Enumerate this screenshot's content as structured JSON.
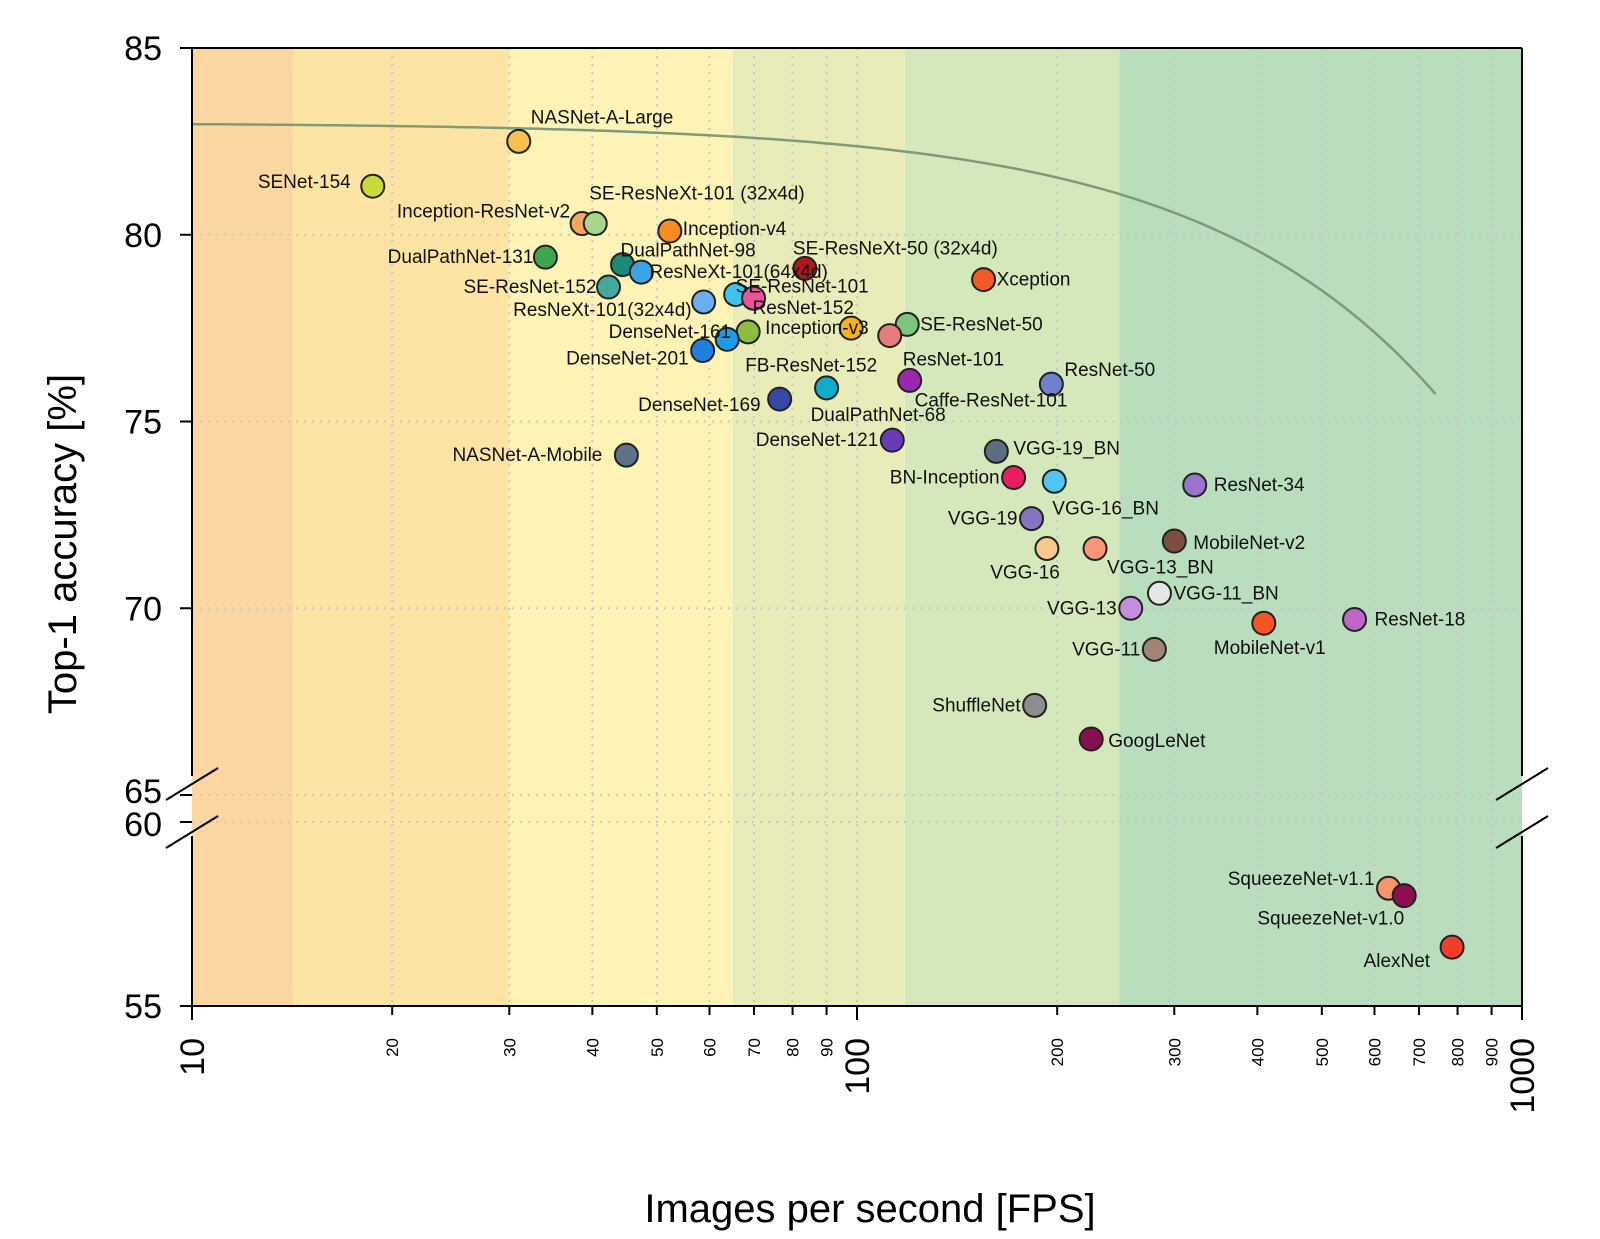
{
  "chart_data": {
    "type": "scatter",
    "xlabel": "Images per second [FPS]",
    "ylabel": "Top-1 accuracy [%]",
    "xscale": "log",
    "xlim": [
      10,
      1000
    ],
    "ylim_upper": [
      65,
      85
    ],
    "ylim_lower": [
      55,
      60
    ],
    "broken_y_axis": true,
    "grid": true,
    "y_ticks": [
      "55",
      "60",
      "65",
      "70",
      "75",
      "80",
      "85"
    ],
    "x_major_ticks": [
      "10",
      "100",
      "1000"
    ],
    "x_minor_ticks": [
      "20",
      "30",
      "40",
      "50",
      "60",
      "70",
      "80",
      "90",
      "200",
      "300",
      "400",
      "500",
      "600",
      "700",
      "800",
      "900"
    ],
    "background_bands": [
      {
        "from": 10,
        "to": 14.2,
        "color": "#fbd6a3"
      },
      {
        "from": 14.2,
        "to": 30,
        "color": "#fde4a4"
      },
      {
        "from": 30,
        "to": 65,
        "color": "#fdf3b7"
      },
      {
        "from": 65,
        "to": 118,
        "color": "#e9ecb8"
      },
      {
        "from": 118,
        "to": 248,
        "color": "#d5e8bb"
      },
      {
        "from": 248,
        "to": 1000,
        "color": "#b9ddbd"
      }
    ],
    "frontier_color": "#7f9a7a",
    "points": [
      {
        "name": "NASNet-A-Large",
        "fps": 31,
        "acc": 82.5,
        "color": "#f8c14f"
      },
      {
        "name": "SENet-154",
        "fps": 18.7,
        "acc": 81.3,
        "color": "#c8d93a"
      },
      {
        "name": "Inception-ResNet-v2",
        "fps": 38.6,
        "acc": 80.3,
        "color": "#f5a55f"
      },
      {
        "name": "SE-ResNeXt-101 (32x4d)",
        "fps": 40.4,
        "acc": 80.3,
        "color": "#a8d58a"
      },
      {
        "name": "Inception-v4",
        "fps": 52.3,
        "acc": 80.1,
        "color": "#f68b1f"
      },
      {
        "name": "DualPathNet-131",
        "fps": 34,
        "acc": 79.4,
        "color": "#3ea74b"
      },
      {
        "name": "DualPathNet-98",
        "fps": 44.4,
        "acc": 79.2,
        "color": "#1b8a78"
      },
      {
        "name": "ResNeXt-101(64x4d)",
        "fps": 47.4,
        "acc": 79.0,
        "color": "#3aa3e3"
      },
      {
        "name": "SE-ResNeXt-50 (32x4d)",
        "fps": 83.5,
        "acc": 79.1,
        "color": "#b0181c"
      },
      {
        "name": "Xception",
        "fps": 155,
        "acc": 78.8,
        "color": "#f45a23"
      },
      {
        "name": "SE-ResNet-152",
        "fps": 42.3,
        "acc": 78.6,
        "color": "#44a89d"
      },
      {
        "name": "SE-ResNet-101",
        "fps": 65.7,
        "acc": 78.4,
        "color": "#3dc4e8"
      },
      {
        "name": "ResNeXt-101(32x4d)",
        "fps": 58.8,
        "acc": 78.2,
        "color": "#6aaef0"
      },
      {
        "name": "ResNet-152",
        "fps": 69.9,
        "acc": 78.3,
        "color": "#e8559a"
      },
      {
        "name": "SE-ResNet-50",
        "fps": 119,
        "acc": 77.6,
        "color": "#7cc67c"
      },
      {
        "name": "Inception-v3",
        "fps": 98,
        "acc": 77.5,
        "color": "#f5b316"
      },
      {
        "name": "DenseNet-161",
        "fps": 68.6,
        "acc": 77.4,
        "color": "#8cbd43"
      },
      {
        "name": "FB-ResNet-152",
        "fps": 63.8,
        "acc": 77.2,
        "color": "#1a9ce8"
      },
      {
        "name": "ResNet-101",
        "fps": 112,
        "acc": 77.3,
        "color": "#e77b7e"
      },
      {
        "name": "DenseNet-201",
        "fps": 58.6,
        "acc": 76.9,
        "color": "#1f7ede"
      },
      {
        "name": "ResNet-50",
        "fps": 196,
        "acc": 76.0,
        "color": "#7080cc"
      },
      {
        "name": "Caffe-ResNet-101",
        "fps": 120,
        "acc": 76.1,
        "color": "#9a27b0"
      },
      {
        "name": "DualPathNet-68",
        "fps": 90,
        "acc": 75.9,
        "color": "#11acc9"
      },
      {
        "name": "DenseNet-169",
        "fps": 76.5,
        "acc": 75.6,
        "color": "#3848a8"
      },
      {
        "name": "DenseNet-121",
        "fps": 113,
        "acc": 74.5,
        "color": "#6a3ab8"
      },
      {
        "name": "NASNet-A-Mobile",
        "fps": 45,
        "acc": 74.1,
        "color": "#5c7485"
      },
      {
        "name": "VGG-19_BN",
        "fps": 162,
        "acc": 74.2,
        "color": "#5e6e7e"
      },
      {
        "name": "BN-Inception",
        "fps": 172,
        "acc": 73.5,
        "color": "#e91e62"
      },
      {
        "name": "VGG-16_BN",
        "fps": 198,
        "acc": 73.4,
        "color": "#4fc5ef"
      },
      {
        "name": "ResNet-34",
        "fps": 322,
        "acc": 73.3,
        "color": "#9a72d0"
      },
      {
        "name": "VGG-19",
        "fps": 183,
        "acc": 72.4,
        "color": "#8474c0"
      },
      {
        "name": "MobileNet-v2",
        "fps": 300,
        "acc": 71.8,
        "color": "#7a4f40"
      },
      {
        "name": "VGG-16",
        "fps": 193,
        "acc": 71.6,
        "color": "#f6c98f"
      },
      {
        "name": "VGG-13_BN",
        "fps": 228,
        "acc": 71.6,
        "color": "#f7977a"
      },
      {
        "name": "VGG-11_BN",
        "fps": 285,
        "acc": 70.4,
        "color": "#e6e6e6"
      },
      {
        "name": "VGG-13",
        "fps": 258,
        "acc": 70.0,
        "color": "#c58ddd"
      },
      {
        "name": "ResNet-18",
        "fps": 560,
        "acc": 69.7,
        "color": "#c065c9"
      },
      {
        "name": "MobileNet-v1",
        "fps": 409,
        "acc": 69.6,
        "color": "#f65327"
      },
      {
        "name": "VGG-11",
        "fps": 280,
        "acc": 68.9,
        "color": "#a08476"
      },
      {
        "name": "ShuffleNet",
        "fps": 185,
        "acc": 67.4,
        "color": "#8d8d8d"
      },
      {
        "name": "GoogLeNet",
        "fps": 225,
        "acc": 66.5,
        "color": "#86104e"
      },
      {
        "name": "SqueezeNet-v1.1",
        "fps": 630,
        "acc": 58.2,
        "color": "#f7946c"
      },
      {
        "name": "SqueezeNet-v1.0",
        "fps": 665,
        "acc": 58.0,
        "color": "#8d0f50"
      },
      {
        "name": "AlexNet",
        "fps": 785,
        "acc": 56.6,
        "color": "#f33d2b"
      }
    ]
  }
}
